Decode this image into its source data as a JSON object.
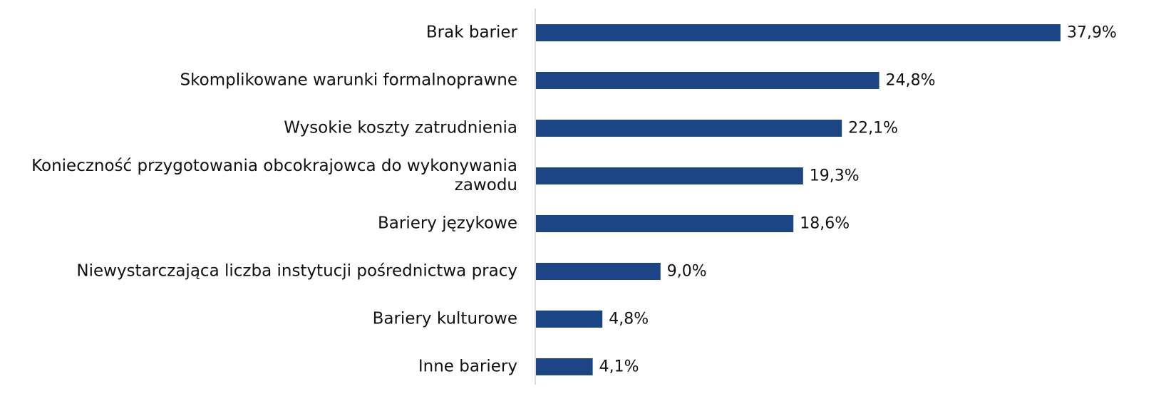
{
  "chart_data": {
    "type": "hbar",
    "categories": [
      "Brak barier",
      "Skomplikowane warunki formalnoprawne",
      "Wysokie koszty zatrudnienia",
      "Konieczność przygotowania obcokrajowca do wykonywania zawodu",
      "Bariery językowe",
      "Niewystarczająca liczba instytucji pośrednictwa pracy",
      "Bariery kulturowe",
      "Inne bariery"
    ],
    "values": [
      37.9,
      24.8,
      22.1,
      19.3,
      18.6,
      9.0,
      4.8,
      4.1
    ],
    "value_labels": [
      "37,9%",
      "24,8%",
      "22,1%",
      "19,3%",
      "18,6%",
      "9,0%",
      "4,8%",
      "4,1%"
    ],
    "color": "#1b4584"
  }
}
